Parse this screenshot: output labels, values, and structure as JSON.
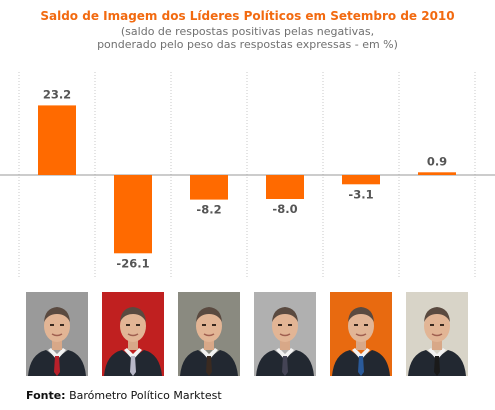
{
  "chart_data": {
    "type": "bar",
    "title": "Saldo de Imagem dos Líderes Políticos em Setembro de 2010",
    "subtitle_line1": "(saldo de respostas positivas pelas negativas,",
    "subtitle_line2": "ponderado pelo peso das respostas expressas - em %)",
    "values": [
      23.2,
      -26.1,
      -8.2,
      -8.0,
      -3.1,
      0.9
    ],
    "value_labels": [
      "23.2",
      "-26.1",
      "-8.2",
      "-8.0",
      "-3.1",
      "0.9"
    ],
    "ylim": [
      -30,
      30
    ],
    "grid": "vertical-dotted",
    "bar_color": "#ff6a00"
  },
  "portraits": [
    {
      "icon": "portrait-1",
      "bg": "#9a9a9a",
      "tie": "#b8202a"
    },
    {
      "icon": "portrait-2",
      "bg": "#c02020",
      "tie": "#b8b8c8"
    },
    {
      "icon": "portrait-3",
      "bg": "#8a8a80",
      "tie": "#3a2a20"
    },
    {
      "icon": "portrait-4",
      "bg": "#b0b0b0",
      "tie": "#445"
    },
    {
      "icon": "portrait-5",
      "bg": "#e86a10",
      "tie": "#2a5a9a"
    },
    {
      "icon": "portrait-6",
      "bg": "#d8d4c8",
      "tie": "#1a1a1a"
    }
  ],
  "source": {
    "label": "Fonte:",
    "text": "Barómetro Político Marktest"
  }
}
